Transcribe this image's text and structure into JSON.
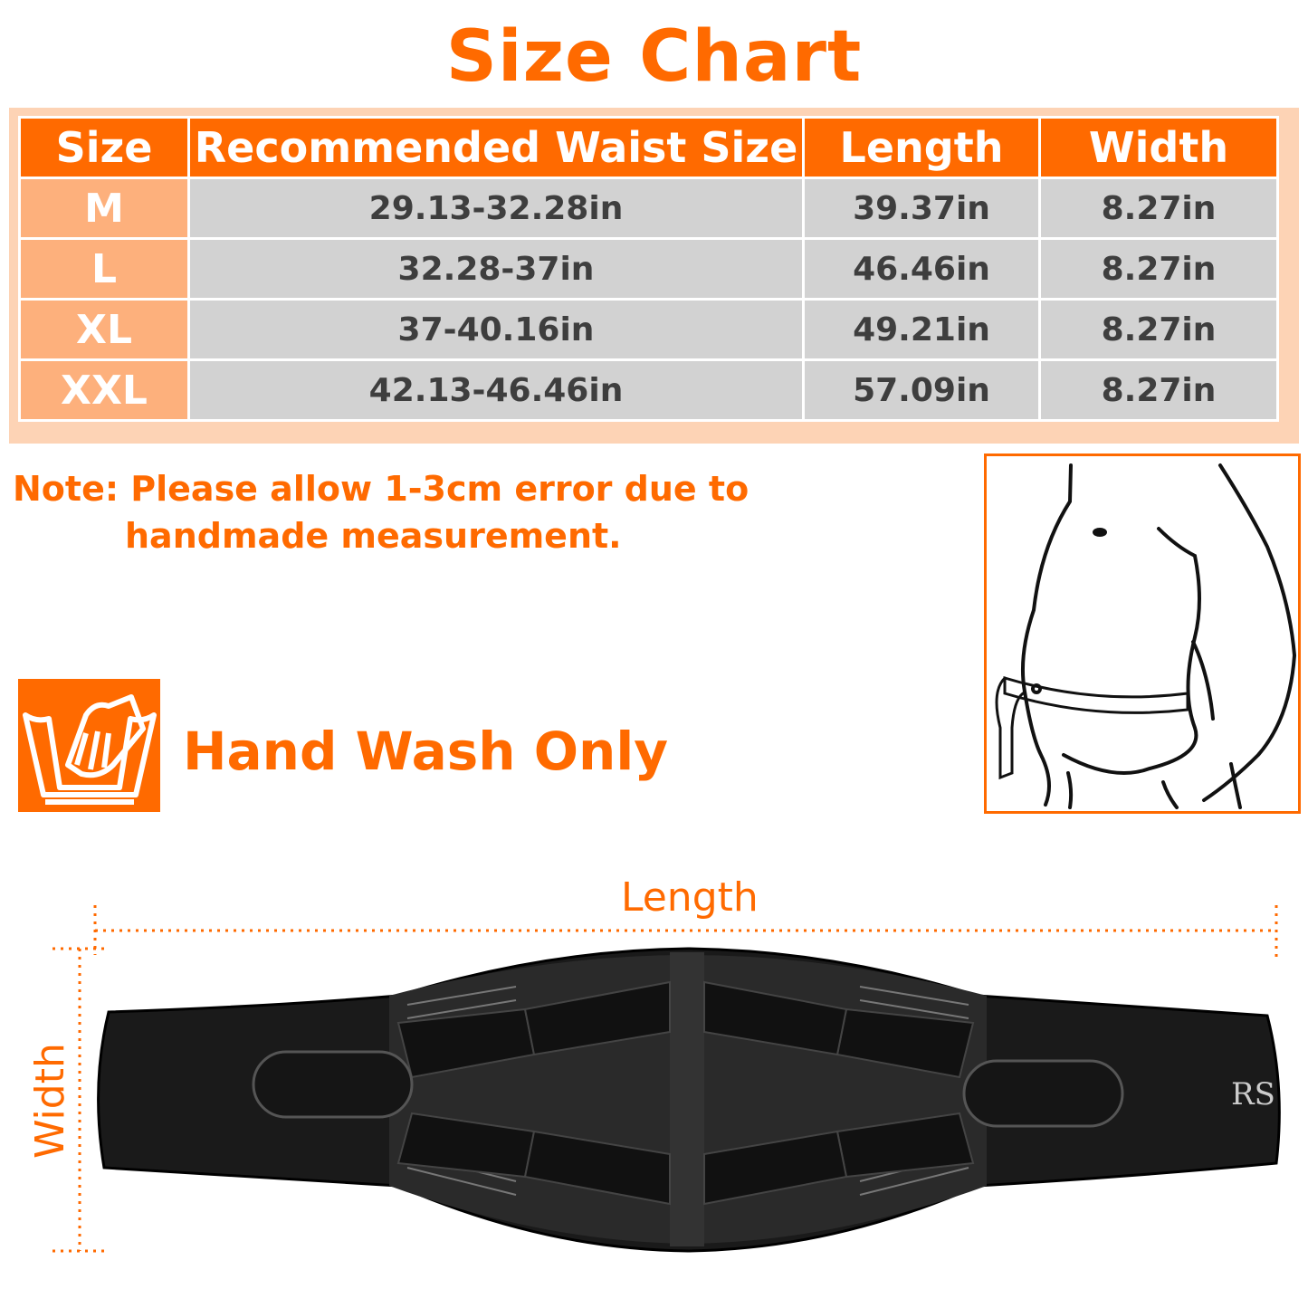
{
  "title": "Size Chart",
  "table": {
    "headers": [
      "Size",
      "Recommended Waist Size",
      "Length",
      "Width"
    ],
    "rows": [
      [
        "M",
        "29.13-32.28in",
        "39.37in",
        "8.27in"
      ],
      [
        "L",
        "32.28-37in",
        "46.46in",
        "8.27in"
      ],
      [
        "XL",
        "37-40.16in",
        "49.21in",
        "8.27in"
      ],
      [
        "XXL",
        "42.13-46.46in",
        "57.09in",
        "8.27in"
      ]
    ]
  },
  "note": {
    "line1": "Note: Please allow 1-3cm error due to",
    "line2": "handmade measurement."
  },
  "care": {
    "label": "Hand Wash Only",
    "icon": "hand-wash-icon"
  },
  "diagram": {
    "length_label": "Length",
    "width_label": "Width",
    "logo": "RS"
  },
  "colors": {
    "accent": "#ff6a00",
    "size_cell": "#fdb07c",
    "value_cell": "#d2d2d2",
    "frame": "#fdd3b5"
  }
}
